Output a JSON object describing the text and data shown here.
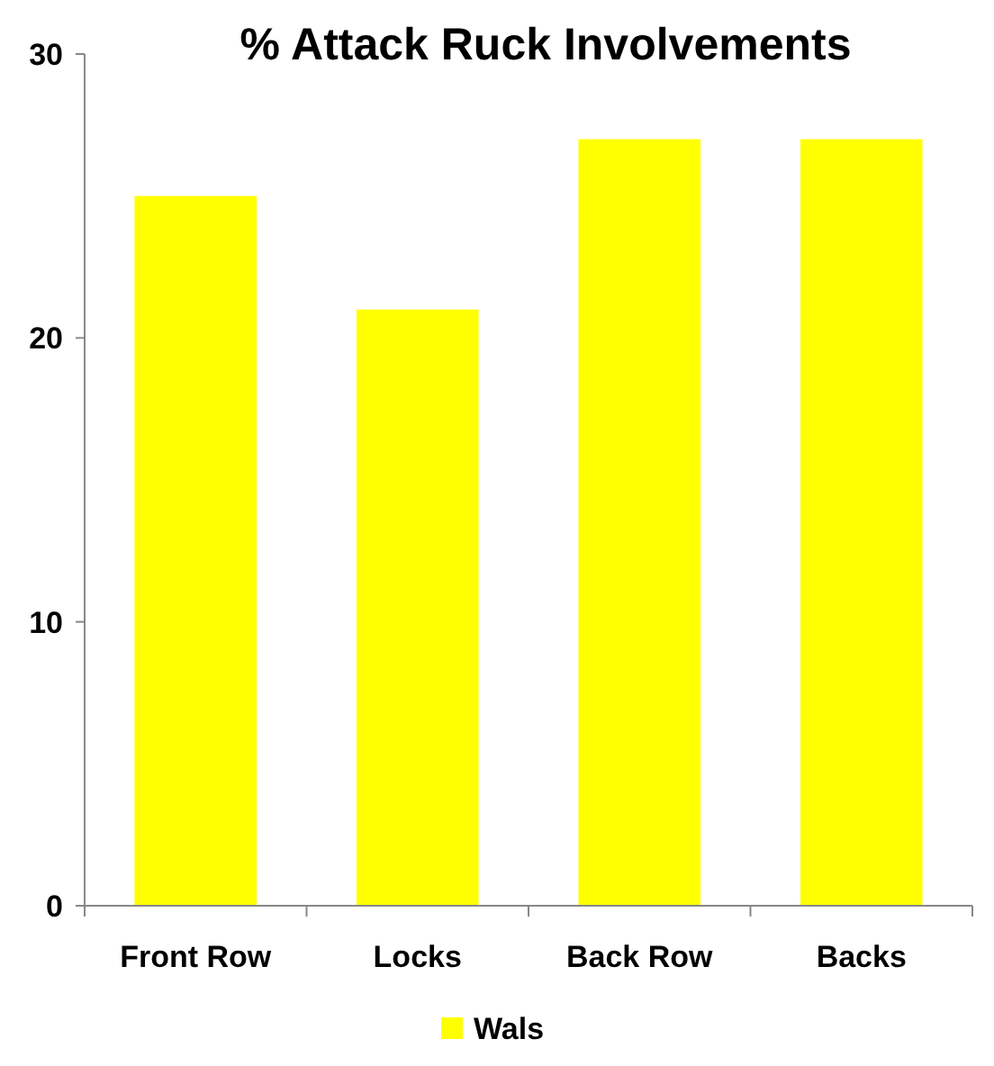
{
  "chart_data": {
    "type": "bar",
    "title": "% Attack Ruck Involvements",
    "categories": [
      "Front Row",
      "Locks",
      "Back Row",
      "Backs"
    ],
    "series": [
      {
        "name": "Wals",
        "color": "#ffff00",
        "values": [
          25,
          21,
          27,
          27
        ]
      }
    ],
    "ylim": [
      0,
      30
    ],
    "yticks": [
      0,
      10,
      20,
      30
    ],
    "grid": false,
    "legend": "bottom"
  }
}
